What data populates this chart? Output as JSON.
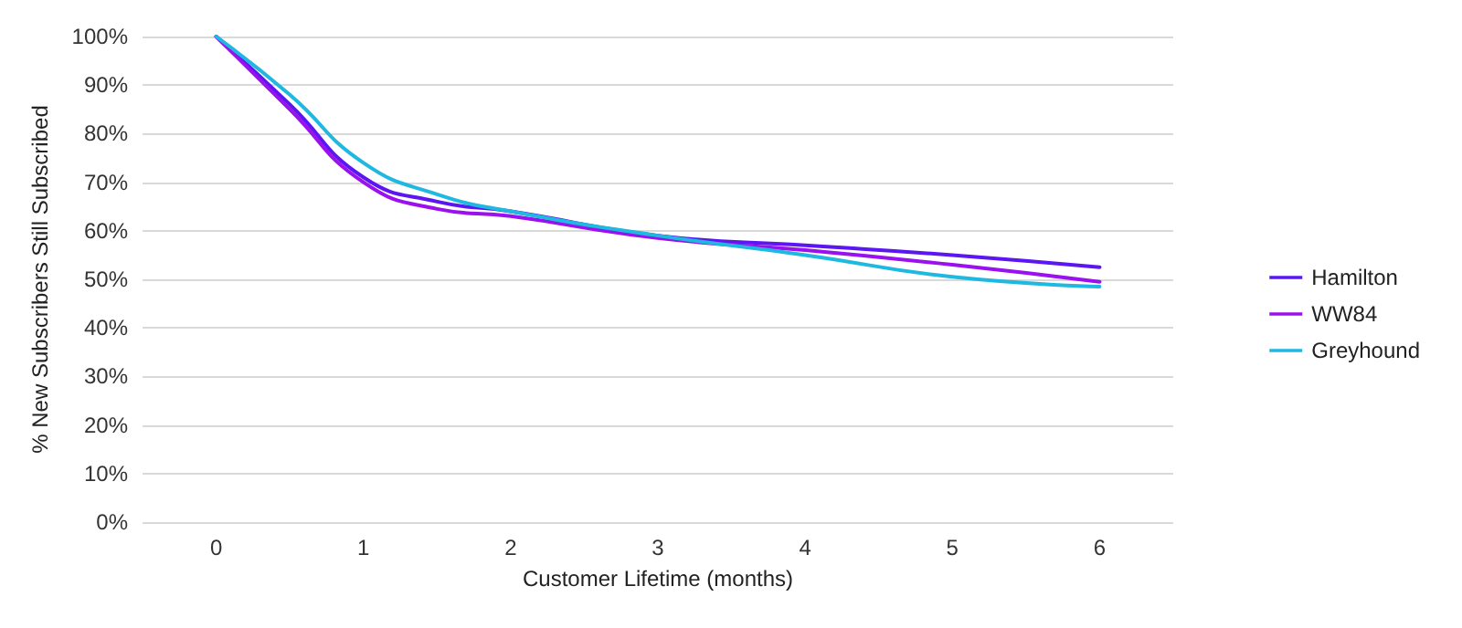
{
  "chart_data": {
    "type": "line",
    "xlabel": "Customer Lifetime (months)",
    "ylabel": "% New Subscribers Still Subscribed",
    "x": [
      0,
      0.5,
      1,
      1.5,
      2,
      3,
      4,
      5,
      6
    ],
    "series": [
      {
        "name": "Hamilton",
        "color": "#5b16f2",
        "values": [
          100,
          86,
          71,
          66,
          64,
          59,
          57,
          55,
          52.5
        ]
      },
      {
        "name": "WW84",
        "color": "#9b10ee",
        "values": [
          100,
          85,
          70,
          64.5,
          63,
          58.5,
          56,
          53,
          49.5
        ]
      },
      {
        "name": "Greyhound",
        "color": "#1fb8e0",
        "values": [
          100,
          88,
          74,
          67.5,
          64,
          59,
          55,
          50.5,
          48.5
        ]
      }
    ],
    "xlim": [
      -0.5,
      6.5
    ],
    "xticks": [
      0,
      1,
      2,
      3,
      4,
      5,
      6
    ],
    "ylim": [
      0,
      100
    ],
    "yticks": [
      {
        "value": 0,
        "label": "0%"
      },
      {
        "value": 10,
        "label": "10%"
      },
      {
        "value": 20,
        "label": "20%"
      },
      {
        "value": 30,
        "label": "30%"
      },
      {
        "value": 40,
        "label": "40%"
      },
      {
        "value": 50,
        "label": "50%"
      },
      {
        "value": 60,
        "label": "60%"
      },
      {
        "value": 70,
        "label": "70%"
      },
      {
        "value": 80,
        "label": "80%"
      },
      {
        "value": 90,
        "label": "90%"
      },
      {
        "value": 100,
        "label": "100%"
      }
    ],
    "grid": "y",
    "legend": "right",
    "marker": "none",
    "line_style": "solid"
  }
}
